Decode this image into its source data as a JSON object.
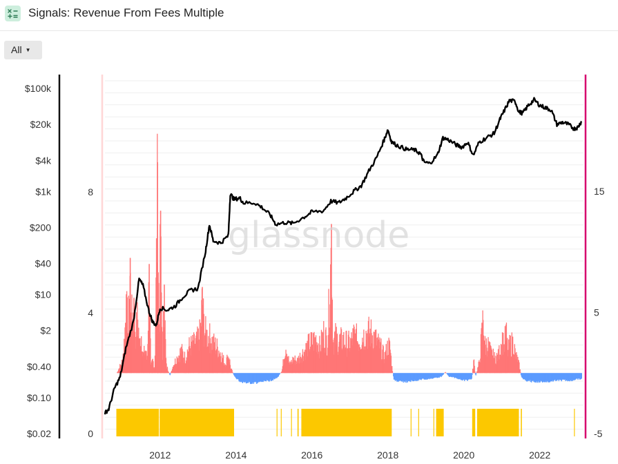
{
  "header": {
    "title": "Signals: Revenue From Fees Multiple",
    "icon": "formula-icon"
  },
  "filter": {
    "label": "All"
  },
  "watermark": "glassnode",
  "chart_data": {
    "type": "line",
    "title": "Signals: Revenue From Fees Multiple",
    "xlabel": "",
    "ylabel": "",
    "x_ticks": [
      "2012",
      "2014",
      "2016",
      "2018",
      "2020",
      "2022"
    ],
    "x_range": [
      2010.55,
      2023.15
    ],
    "left_axis_price": {
      "scale": "log",
      "range": [
        0.02,
        100000
      ],
      "ticks": [
        "$100k",
        "$20k",
        "$4k",
        "$1k",
        "$200",
        "$40",
        "$10",
        "$2",
        "$0.40",
        "$0.10",
        "$0.02"
      ],
      "tick_values": [
        100000,
        20000,
        4000,
        1000,
        200,
        40,
        10,
        2,
        0.4,
        0.1,
        0.02
      ]
    },
    "left_axis_signal": {
      "ticks": [
        "8",
        "4",
        "0"
      ],
      "tick_values": [
        8,
        4,
        0
      ]
    },
    "right_axis": {
      "range": [
        -5,
        20
      ],
      "ticks": [
        "15",
        "5",
        "-5"
      ],
      "tick_values": [
        15,
        5,
        -5
      ]
    },
    "grid": true,
    "colors": {
      "price": "#000000",
      "positive": "#ff7676",
      "negative": "#5b9bff",
      "signal": "#fcc800",
      "right_axis": "#d6006d",
      "left_highlight": "#ffd6d6"
    },
    "series": [
      {
        "name": "",
        "type": "line",
        "axis": "left_axis_price",
        "points": [
          [
            2010.55,
            0.05
          ],
          [
            2010.65,
            0.06
          ],
          [
            2010.8,
            0.15
          ],
          [
            2010.95,
            0.25
          ],
          [
            2011.1,
            0.9
          ],
          [
            2011.3,
            3
          ],
          [
            2011.45,
            20
          ],
          [
            2011.55,
            15
          ],
          [
            2011.7,
            5
          ],
          [
            2011.8,
            3
          ],
          [
            2011.9,
            2.5
          ],
          [
            2012.0,
            5.5
          ],
          [
            2012.2,
            5
          ],
          [
            2012.4,
            6
          ],
          [
            2012.6,
            9
          ],
          [
            2012.8,
            12
          ],
          [
            2013.0,
            13
          ],
          [
            2013.2,
            70
          ],
          [
            2013.3,
            230
          ],
          [
            2013.4,
            110
          ],
          [
            2013.6,
            100
          ],
          [
            2013.8,
            140
          ],
          [
            2013.85,
            900
          ],
          [
            2013.95,
            700
          ],
          [
            2014.1,
            750
          ],
          [
            2014.2,
            600
          ],
          [
            2014.5,
            600
          ],
          [
            2014.7,
            480
          ],
          [
            2014.9,
            350
          ],
          [
            2015.05,
            230
          ],
          [
            2015.3,
            250
          ],
          [
            2015.5,
            240
          ],
          [
            2015.8,
            320
          ],
          [
            2016.0,
            400
          ],
          [
            2016.3,
            420
          ],
          [
            2016.5,
            650
          ],
          [
            2016.7,
            600
          ],
          [
            2016.9,
            750
          ],
          [
            2017.1,
            1000
          ],
          [
            2017.3,
            1300
          ],
          [
            2017.5,
            2500
          ],
          [
            2017.7,
            4500
          ],
          [
            2017.9,
            10000
          ],
          [
            2018.0,
            16000
          ],
          [
            2018.1,
            9000
          ],
          [
            2018.3,
            7500
          ],
          [
            2018.5,
            6500
          ],
          [
            2018.7,
            6400
          ],
          [
            2018.85,
            5500
          ],
          [
            2018.95,
            3700
          ],
          [
            2019.1,
            3500
          ],
          [
            2019.3,
            5000
          ],
          [
            2019.45,
            11000
          ],
          [
            2019.6,
            10000
          ],
          [
            2019.8,
            8000
          ],
          [
            2019.95,
            7200
          ],
          [
            2020.1,
            9000
          ],
          [
            2020.25,
            5000
          ],
          [
            2020.4,
            9000
          ],
          [
            2020.6,
            11000
          ],
          [
            2020.8,
            13500
          ],
          [
            2020.95,
            25000
          ],
          [
            2021.05,
            35000
          ],
          [
            2021.2,
            58000
          ],
          [
            2021.35,
            56000
          ],
          [
            2021.45,
            35000
          ],
          [
            2021.55,
            33000
          ],
          [
            2021.7,
            47000
          ],
          [
            2021.85,
            60000
          ],
          [
            2022.0,
            47000
          ],
          [
            2022.15,
            42000
          ],
          [
            2022.3,
            38000
          ],
          [
            2022.45,
            20000
          ],
          [
            2022.6,
            22000
          ],
          [
            2022.75,
            20000
          ],
          [
            2022.9,
            16500
          ],
          [
            2023.0,
            17500
          ],
          [
            2023.1,
            23000
          ]
        ]
      },
      {
        "name": "",
        "type": "bar",
        "axis": "right_axis",
        "note_direction": "positive values are red bars, negative values are blue bars",
        "points": [
          [
            2010.85,
            0
          ],
          [
            2011.0,
            1.2
          ],
          [
            2011.05,
            3.3
          ],
          [
            2011.1,
            6.5
          ],
          [
            2011.15,
            4.2
          ],
          [
            2011.2,
            9.5
          ],
          [
            2011.25,
            5.1
          ],
          [
            2011.3,
            6.2
          ],
          [
            2011.35,
            3.8
          ],
          [
            2011.4,
            5.6
          ],
          [
            2011.45,
            2.8
          ],
          [
            2011.5,
            3.9
          ],
          [
            2011.55,
            1.6
          ],
          [
            2011.6,
            2.4
          ],
          [
            2011.65,
            1.2
          ],
          [
            2011.7,
            9.0
          ],
          [
            2011.75,
            0.6
          ],
          [
            2011.8,
            1.3
          ],
          [
            2011.85,
            0.4
          ],
          [
            2011.92,
            17.4
          ],
          [
            2011.97,
            4.1
          ],
          [
            2012.0,
            13.4
          ],
          [
            2012.05,
            2.0
          ],
          [
            2012.1,
            7.3
          ],
          [
            2012.15,
            0.8
          ],
          [
            2012.25,
            -0.2
          ],
          [
            2012.35,
            0.9
          ],
          [
            2012.45,
            1.6
          ],
          [
            2012.55,
            2.2
          ],
          [
            2012.65,
            1.5
          ],
          [
            2012.75,
            2.6
          ],
          [
            2012.85,
            2.8
          ],
          [
            2012.95,
            3.0
          ],
          [
            2013.05,
            3.9
          ],
          [
            2013.1,
            7.1
          ],
          [
            2013.15,
            4.5
          ],
          [
            2013.2,
            3.8
          ],
          [
            2013.3,
            3.5
          ],
          [
            2013.4,
            2.9
          ],
          [
            2013.5,
            2.5
          ],
          [
            2013.6,
            1.9
          ],
          [
            2013.7,
            0.9
          ],
          [
            2013.8,
            1.8
          ],
          [
            2013.85,
            0.5
          ],
          [
            2013.95,
            -0.3
          ],
          [
            2014.1,
            -0.7
          ],
          [
            2014.3,
            -0.8
          ],
          [
            2014.5,
            -0.8
          ],
          [
            2014.7,
            -0.7
          ],
          [
            2014.9,
            -0.6
          ],
          [
            2015.0,
            -0.5
          ],
          [
            2015.1,
            -0.3
          ],
          [
            2015.2,
            0.2
          ],
          [
            2015.3,
            2.8
          ],
          [
            2015.4,
            0.8
          ],
          [
            2015.5,
            1.4
          ],
          [
            2015.6,
            1.2
          ],
          [
            2015.7,
            1.8
          ],
          [
            2015.8,
            2.2
          ],
          [
            2015.9,
            2.8
          ],
          [
            2016.0,
            3.1
          ],
          [
            2016.1,
            3.4
          ],
          [
            2016.2,
            2.5
          ],
          [
            2016.3,
            4.0
          ],
          [
            2016.4,
            3.0
          ],
          [
            2016.5,
            12.3
          ],
          [
            2016.55,
            3.1
          ],
          [
            2016.6,
            3.6
          ],
          [
            2016.7,
            3.1
          ],
          [
            2016.8,
            3.3
          ],
          [
            2016.9,
            3.0
          ],
          [
            2017.0,
            2.9
          ],
          [
            2017.1,
            3.8
          ],
          [
            2017.2,
            3.2
          ],
          [
            2017.3,
            3.5
          ],
          [
            2017.4,
            3.9
          ],
          [
            2017.5,
            4.0
          ],
          [
            2017.6,
            3.8
          ],
          [
            2017.7,
            3.1
          ],
          [
            2017.8,
            2.5
          ],
          [
            2017.9,
            1.6
          ],
          [
            2018.0,
            2.8
          ],
          [
            2018.05,
            2.4
          ],
          [
            2018.1,
            0.5
          ],
          [
            2018.15,
            -0.6
          ],
          [
            2018.3,
            -0.7
          ],
          [
            2018.5,
            -0.7
          ],
          [
            2018.7,
            -0.6
          ],
          [
            2018.9,
            -0.5
          ],
          [
            2019.0,
            -0.5
          ],
          [
            2019.2,
            -0.4
          ],
          [
            2019.4,
            -0.3
          ],
          [
            2019.5,
            0.1
          ],
          [
            2019.6,
            -0.3
          ],
          [
            2019.8,
            -0.4
          ],
          [
            2020.0,
            -0.6
          ],
          [
            2020.2,
            -0.5
          ],
          [
            2020.25,
            1.3
          ],
          [
            2020.3,
            -0.3
          ],
          [
            2020.4,
            1.1
          ],
          [
            2020.5,
            5.6
          ],
          [
            2020.55,
            2.5
          ],
          [
            2020.6,
            3.0
          ],
          [
            2020.7,
            2.0
          ],
          [
            2020.8,
            1.5
          ],
          [
            2020.9,
            1.7
          ],
          [
            2021.0,
            3.5
          ],
          [
            2021.05,
            2.5
          ],
          [
            2021.1,
            4.1
          ],
          [
            2021.15,
            2.0
          ],
          [
            2021.2,
            2.8
          ],
          [
            2021.3,
            3.0
          ],
          [
            2021.35,
            1.7
          ],
          [
            2021.4,
            1.4
          ],
          [
            2021.45,
            0.7
          ],
          [
            2021.5,
            -0.3
          ],
          [
            2021.6,
            -0.6
          ],
          [
            2021.8,
            -0.7
          ],
          [
            2022.0,
            -0.7
          ],
          [
            2022.2,
            -0.7
          ],
          [
            2022.4,
            -0.6
          ],
          [
            2022.6,
            -0.6
          ],
          [
            2022.8,
            -0.6
          ],
          [
            2023.0,
            -0.5
          ],
          [
            2023.1,
            -0.5
          ]
        ]
      },
      {
        "name": "",
        "type": "signal",
        "axis": "left_axis_signal",
        "value": 1,
        "intervals": [
          [
            2010.85,
            2011.97
          ],
          [
            2011.99,
            2013.95
          ],
          [
            2015.07,
            2015.09
          ],
          [
            2015.18,
            2015.2
          ],
          [
            2015.45,
            2015.47
          ],
          [
            2015.62,
            2015.65
          ],
          [
            2015.72,
            2018.1
          ],
          [
            2018.6,
            2018.62
          ],
          [
            2018.8,
            2018.82
          ],
          [
            2019.2,
            2019.22
          ],
          [
            2019.27,
            2019.47
          ],
          [
            2020.22,
            2020.3
          ],
          [
            2020.35,
            2021.45
          ],
          [
            2021.5,
            2021.53
          ],
          [
            2022.9,
            2022.92
          ]
        ]
      }
    ]
  }
}
